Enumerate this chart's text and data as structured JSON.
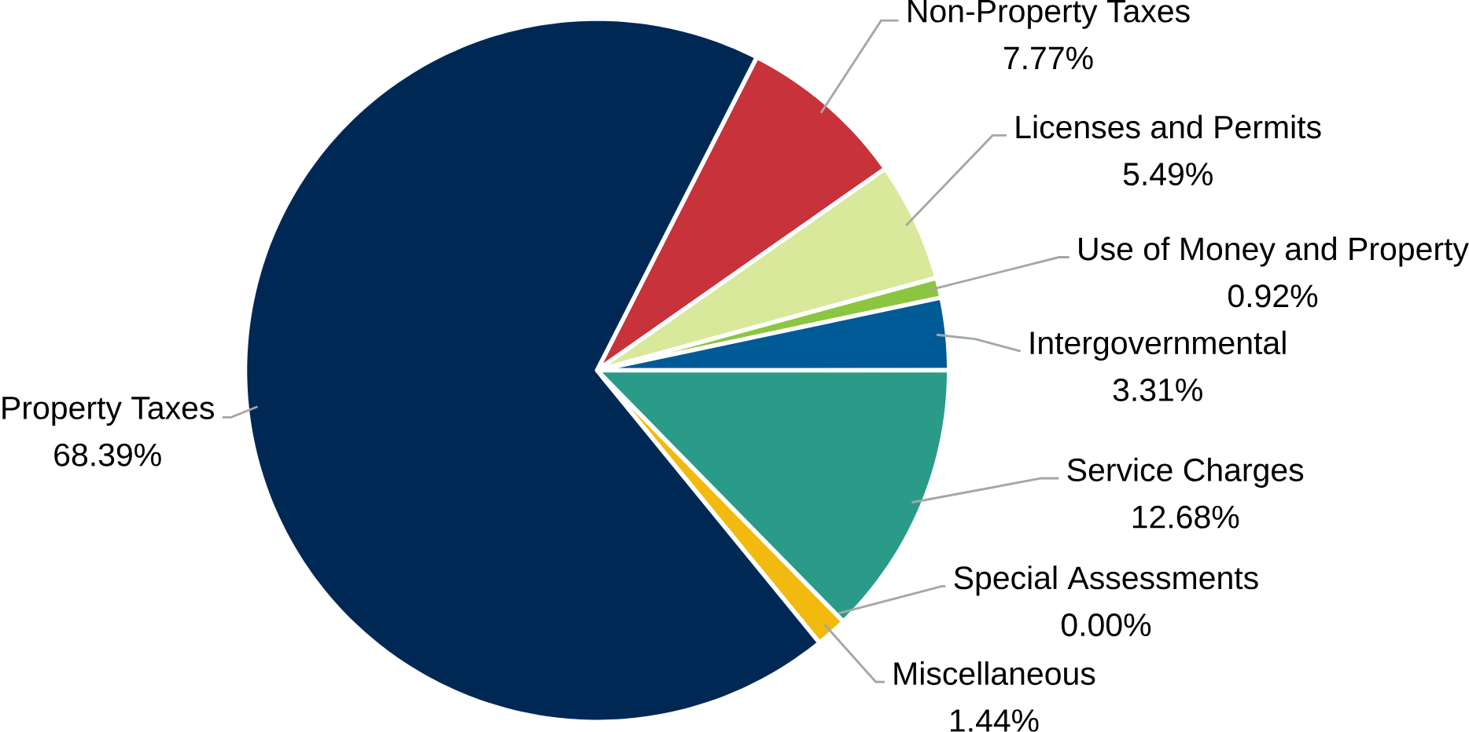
{
  "chart_data": {
    "type": "pie",
    "categories": [
      "Non-Property Taxes",
      "Licenses and Permits",
      "Use of Money and Property",
      "Intergovernmental",
      "Service Charges",
      "Special Assessments",
      "Miscellaneous",
      "Property Taxes"
    ],
    "values": [
      7.77,
      5.49,
      0.92,
      3.31,
      12.68,
      0.0,
      1.44,
      68.39
    ],
    "value_labels": [
      "7.77%",
      "5.49%",
      "0.92%",
      "3.31%",
      "12.68%",
      "0.00%",
      "1.44%",
      "68.39%"
    ],
    "colors": [
      "#c8323a",
      "#d8e99b",
      "#8cc640",
      "#005a96",
      "#2a9b88",
      "#6a7fb0",
      "#f2b90f",
      "#002855"
    ]
  }
}
